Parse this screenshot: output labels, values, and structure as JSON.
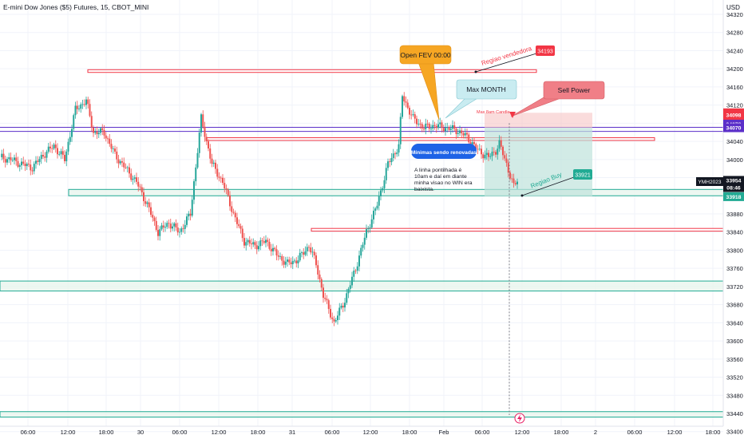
{
  "header": {
    "title": "E-mini Dow Jones ($5) Futures, 15, CBOT_MINI"
  },
  "chart_data": {
    "type": "candlestick",
    "symbol": "E-mini Dow Jones ($5) Futures",
    "interval": "15",
    "exchange": "CBOT_MINI",
    "currency": "USD",
    "ylim": [
      33395,
      34335
    ],
    "y_ticks": [
      34320,
      34280,
      34240,
      34200,
      34160,
      34120,
      34080,
      34040,
      34000,
      33960,
      33920,
      33880,
      33840,
      33800,
      33760,
      33720,
      33680,
      33640,
      33600,
      33560,
      33520,
      33480,
      33440,
      33400
    ],
    "x_ticks": [
      "06:00",
      "12:00",
      "18:00",
      "30",
      "06:00",
      "12:00",
      "18:00",
      "31",
      "06:00",
      "12:00",
      "18:00",
      "Feb",
      "06:00",
      "12:00",
      "18:00",
      "2",
      "06:00",
      "12:00",
      "18:00"
    ],
    "price_path": [
      {
        "t": 0,
        "p": 34005
      },
      {
        "t": 3,
        "p": 34000
      },
      {
        "t": 6,
        "p": 33990
      },
      {
        "t": 9,
        "p": 33982
      },
      {
        "t": 12,
        "p": 34010
      },
      {
        "t": 15,
        "p": 34030
      },
      {
        "t": 18,
        "p": 34000
      },
      {
        "t": 21,
        "p": 34110
      },
      {
        "t": 24,
        "p": 34130
      },
      {
        "t": 26,
        "p": 34060
      },
      {
        "t": 29,
        "p": 34060
      },
      {
        "t": 32,
        "p": 34010
      },
      {
        "t": 35,
        "p": 33980
      },
      {
        "t": 38,
        "p": 33950
      },
      {
        "t": 41,
        "p": 33900
      },
      {
        "t": 44,
        "p": 33840
      },
      {
        "t": 47,
        "p": 33860
      },
      {
        "t": 50,
        "p": 33840
      },
      {
        "t": 53,
        "p": 33880
      },
      {
        "t": 56,
        "p": 34090
      },
      {
        "t": 59,
        "p": 33990
      },
      {
        "t": 62,
        "p": 33950
      },
      {
        "t": 65,
        "p": 33880
      },
      {
        "t": 68,
        "p": 33820
      },
      {
        "t": 71,
        "p": 33810
      },
      {
        "t": 74,
        "p": 33820
      },
      {
        "t": 77,
        "p": 33790
      },
      {
        "t": 80,
        "p": 33770
      },
      {
        "t": 83,
        "p": 33780
      },
      {
        "t": 86,
        "p": 33810
      },
      {
        "t": 88,
        "p": 33770
      },
      {
        "t": 90,
        "p": 33700
      },
      {
        "t": 93,
        "p": 33640
      },
      {
        "t": 96,
        "p": 33690
      },
      {
        "t": 99,
        "p": 33760
      },
      {
        "t": 102,
        "p": 33840
      },
      {
        "t": 105,
        "p": 33900
      },
      {
        "t": 108,
        "p": 33990
      },
      {
        "t": 111,
        "p": 34030
      },
      {
        "t": 112,
        "p": 34140
      },
      {
        "t": 115,
        "p": 34090
      },
      {
        "t": 118,
        "p": 34070
      },
      {
        "t": 121,
        "p": 34075
      },
      {
        "t": 124,
        "p": 34070
      },
      {
        "t": 127,
        "p": 34065
      },
      {
        "t": 130,
        "p": 34050
      },
      {
        "t": 133,
        "p": 34020
      },
      {
        "t": 136,
        "p": 34005
      },
      {
        "t": 138,
        "p": 34020
      },
      {
        "t": 139,
        "p": 34035
      },
      {
        "t": 141,
        "p": 33990
      },
      {
        "t": 143,
        "p": 33940
      },
      {
        "t": 144,
        "p": 33954
      }
    ],
    "levels": [
      {
        "kind": "zone",
        "color": "#f23645",
        "top": 34198,
        "bottom": 34192
      },
      {
        "kind": "zone",
        "color": "#f23645",
        "top": 34048,
        "bottom": 34042
      },
      {
        "kind": "zone",
        "color": "#f23645",
        "top": 33848,
        "bottom": 33842
      },
      {
        "kind": "zone",
        "color": "#22ab94",
        "top": 33934,
        "bottom": 33920
      },
      {
        "kind": "zone",
        "color": "#22ab94",
        "top": 33732,
        "bottom": 33710
      },
      {
        "kind": "zone",
        "color": "#22ab94",
        "top": 33444,
        "bottom": 33432
      },
      {
        "kind": "line",
        "color": "#5b2fc9",
        "price": 34071
      },
      {
        "kind": "line",
        "color": "#5b2fc9",
        "price": 34062
      }
    ],
    "price_badges": [
      {
        "price": 34103,
        "label": "34103",
        "color": "#f23645",
        "text": "#ffffff"
      },
      {
        "price": 34098,
        "label": "34098",
        "color": "#f23645",
        "text": "#ffffff"
      },
      {
        "price": 34080,
        "label": "34080",
        "color": "#f23645",
        "text": "#ffffff"
      },
      {
        "price": 34078,
        "label": "34078",
        "color": "#5b2fc9",
        "text": "#ffffff"
      },
      {
        "price": 34070,
        "label": "34070",
        "color": "#5b2fc9",
        "text": "#ffffff"
      },
      {
        "price": 33954,
        "label": "33954",
        "color": "#131722",
        "text": "#ffffff"
      },
      {
        "price": 33938,
        "label": "08:46",
        "color": "#131722",
        "text": "#ffffff"
      },
      {
        "price": 33918,
        "label": "33918",
        "color": "#22ab94",
        "text": "#ffffff"
      }
    ],
    "symbol_badge": "YMH2023",
    "annotations": {
      "open_fev": "Open FEV 00:00",
      "max_month": "Max MONTH",
      "sell_power": "Sell Power",
      "regiao_vendedora": "Regiao vendedora",
      "regiao_vendedora_price": "34193",
      "regiao_buy": "Regiao Buy",
      "regiao_buy_price": "33921",
      "max_8am_candle": "Max 8am Candle",
      "minimas": "Mínimas sendo renovadas",
      "note": "A linha pontilhada é 10am e daí em diante minha visao no WIN era baixista."
    },
    "colors": {
      "up": "#26a69a",
      "down": "#ef5350",
      "bg": "#ffffff"
    }
  }
}
